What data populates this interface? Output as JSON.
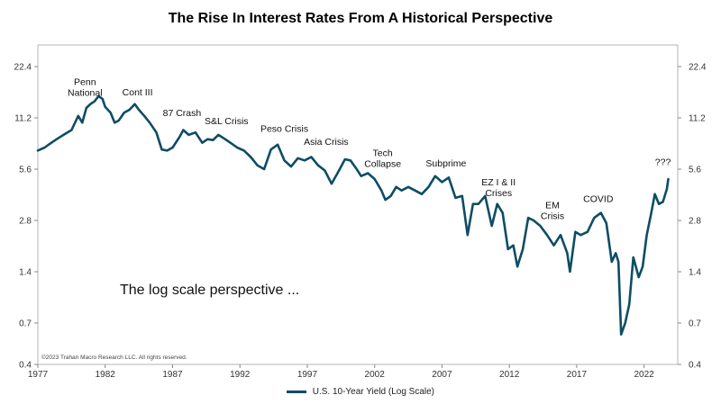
{
  "chart_data": {
    "type": "line",
    "title": "The Rise In Interest Rates From A Historical Perspective",
    "xlabel": "",
    "ylabel": "",
    "y_scale": "log",
    "xlim": [
      1977,
      2024.5
    ],
    "ylim": [
      0.4,
      30
    ],
    "x_ticks": [
      1977,
      1982,
      1987,
      1992,
      1997,
      2002,
      2007,
      2012,
      2017,
      2022
    ],
    "y_ticks": [
      22.4,
      11.2,
      5.6,
      2.8,
      1.4,
      0.7,
      0.4
    ],
    "line_color": "#0e4d64",
    "legend": "U.S. 10-Year Yield (Log Scale)",
    "series": [
      {
        "name": "U.S. 10-Year Yield (Log Scale)",
        "x": [
          1977.0,
          1977.5,
          1978.0,
          1978.5,
          1979.0,
          1979.5,
          1980.0,
          1980.3,
          1980.6,
          1980.9,
          1981.2,
          1981.5,
          1981.8,
          1982.0,
          1982.4,
          1982.7,
          1983.0,
          1983.4,
          1983.8,
          1984.2,
          1984.5,
          1984.9,
          1985.3,
          1985.8,
          1986.2,
          1986.6,
          1987.0,
          1987.5,
          1987.8,
          1988.2,
          1988.7,
          1989.2,
          1989.6,
          1990.0,
          1990.4,
          1990.8,
          1991.3,
          1991.8,
          1992.3,
          1992.8,
          1993.3,
          1993.8,
          1994.3,
          1994.8,
          1995.3,
          1995.8,
          1996.3,
          1996.8,
          1997.3,
          1997.8,
          1998.3,
          1998.8,
          1999.3,
          1999.8,
          2000.2,
          2000.6,
          2001.0,
          2001.5,
          2002.0,
          2002.5,
          2002.8,
          2003.2,
          2003.6,
          2004.0,
          2004.5,
          2005.0,
          2005.5,
          2006.0,
          2006.5,
          2007.0,
          2007.5,
          2008.0,
          2008.5,
          2008.9,
          2009.3,
          2009.7,
          2010.2,
          2010.7,
          2011.1,
          2011.5,
          2011.9,
          2012.3,
          2012.6,
          2013.0,
          2013.4,
          2013.8,
          2014.3,
          2014.8,
          2015.3,
          2015.8,
          2016.3,
          2016.5,
          2016.9,
          2017.3,
          2017.8,
          2018.3,
          2018.8,
          2019.2,
          2019.6,
          2019.9,
          2020.1,
          2020.3,
          2020.6,
          2020.9,
          2021.2,
          2021.6,
          2021.9,
          2022.2,
          2022.5,
          2022.8,
          2023.1,
          2023.4,
          2023.7,
          2023.8
        ],
        "values": [
          7.2,
          7.5,
          8.0,
          8.5,
          9.0,
          9.5,
          11.5,
          10.5,
          12.8,
          13.5,
          14.0,
          15.0,
          14.5,
          13.0,
          12.0,
          10.5,
          10.8,
          12.0,
          12.5,
          13.5,
          12.5,
          11.5,
          10.5,
          9.2,
          7.3,
          7.2,
          7.5,
          8.6,
          9.5,
          8.9,
          9.2,
          8.0,
          8.4,
          8.3,
          8.9,
          8.5,
          8.0,
          7.5,
          7.2,
          6.6,
          5.9,
          5.6,
          7.3,
          7.8,
          6.3,
          5.8,
          6.5,
          6.3,
          6.6,
          5.9,
          5.5,
          4.6,
          5.4,
          6.4,
          6.3,
          5.7,
          5.1,
          5.3,
          4.9,
          4.2,
          3.7,
          3.9,
          4.4,
          4.2,
          4.4,
          4.2,
          4.0,
          4.4,
          5.1,
          4.7,
          5.0,
          3.8,
          3.9,
          2.3,
          3.5,
          3.5,
          3.9,
          2.6,
          3.5,
          3.1,
          1.9,
          2.0,
          1.5,
          1.9,
          2.9,
          2.8,
          2.6,
          2.3,
          2.0,
          2.3,
          1.8,
          1.4,
          2.4,
          2.3,
          2.4,
          2.9,
          3.1,
          2.7,
          1.6,
          1.8,
          1.6,
          0.6,
          0.7,
          0.9,
          1.7,
          1.3,
          1.5,
          2.3,
          3.0,
          4.0,
          3.5,
          3.6,
          4.3,
          4.9
        ]
      }
    ],
    "annotations": [
      {
        "text": "Penn National",
        "x": 1980.5,
        "y": 17.5
      },
      {
        "text": "Cont III",
        "x": 1984.4,
        "y": 15.2
      },
      {
        "text": "87 Crash",
        "x": 1987.7,
        "y": 11.5
      },
      {
        "text": "S&L Crisis",
        "x": 1991.0,
        "y": 10.3
      },
      {
        "text": "Peso Crisis",
        "x": 1995.3,
        "y": 9.3
      },
      {
        "text": "Asia Crisis",
        "x": 1998.4,
        "y": 7.8
      },
      {
        "text": "Tech Collapse",
        "x": 2002.6,
        "y": 6.7
      },
      {
        "text": "Subprime",
        "x": 2007.3,
        "y": 5.8
      },
      {
        "text": "EZ I & II Crises",
        "x": 2011.2,
        "y": 4.5
      },
      {
        "text": "EM Crisis",
        "x": 2015.2,
        "y": 3.3
      },
      {
        "text": "COVID",
        "x": 2018.6,
        "y": 3.6
      },
      {
        "text": "???",
        "x": 2023.4,
        "y": 5.9
      }
    ],
    "note": "The log scale perspective ...",
    "copyright": "©2023 Trahan Macro Research LLC. All rights reserved."
  }
}
